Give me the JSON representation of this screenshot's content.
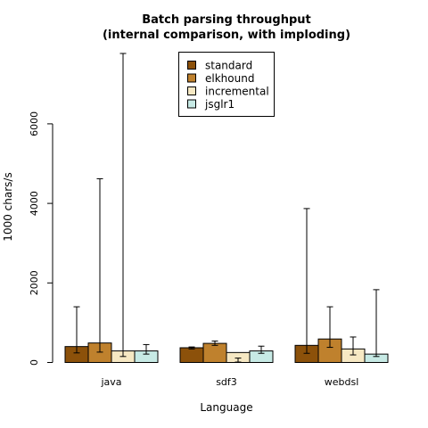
{
  "chart_data": {
    "type": "bar",
    "title": "Batch parsing throughput",
    "subtitle": "(internal comparison, with imploding)",
    "xlabel": "Language",
    "ylabel": "1000 chars/s",
    "ylim": [
      0,
      7900
    ],
    "yticks": [
      0,
      2000,
      4000,
      6000
    ],
    "categories": [
      "java",
      "sdf3",
      "webdsl"
    ],
    "legend_position": "top-center",
    "grid": false,
    "series": [
      {
        "name": "standard",
        "color": "#8c510a",
        "values": [
          400,
          370,
          430
        ],
        "err_low": [
          240,
          340,
          230
        ],
        "err_high": [
          1400,
          390,
          3870
        ]
      },
      {
        "name": "elkhound",
        "color": "#bf812d",
        "values": [
          490,
          480,
          590
        ],
        "err_low": [
          260,
          430,
          380
        ],
        "err_high": [
          4620,
          540,
          1400
        ]
      },
      {
        "name": "incremental",
        "color": "#f6e8c3",
        "values": [
          290,
          250,
          340
        ],
        "err_low": [
          150,
          10,
          190
        ],
        "err_high": [
          7770,
          110,
          640
        ]
      },
      {
        "name": "jsglr1",
        "color": "#c7eae5",
        "values": [
          290,
          290,
          210
        ],
        "err_low": [
          210,
          230,
          150
        ],
        "err_high": [
          450,
          410,
          1830
        ]
      }
    ]
  }
}
